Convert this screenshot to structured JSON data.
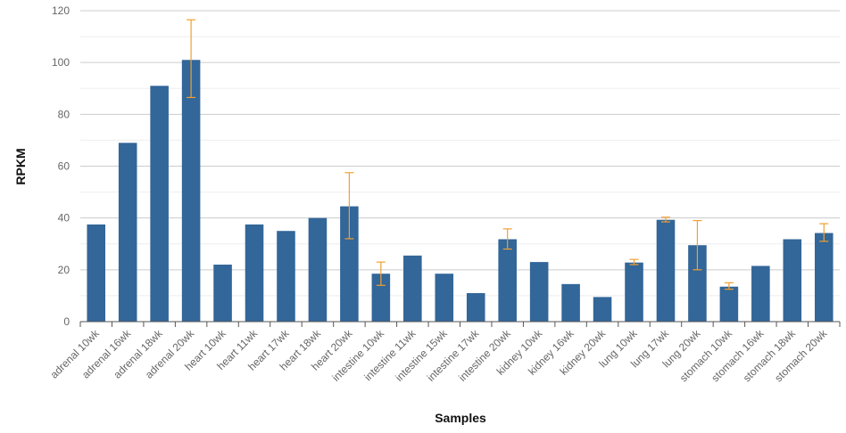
{
  "chart_data": {
    "type": "bar",
    "xlabel": "Samples",
    "ylabel": "RPKM",
    "ylim": [
      0,
      120
    ],
    "yticks": [
      0,
      20,
      40,
      60,
      80,
      100,
      120
    ],
    "grid": true,
    "bar_color": "#336699",
    "error_color": "#f0a030",
    "categories": [
      "adrenal 10wk",
      "adrenal 16wk",
      "adrenal 18wk",
      "adrenal 20wk",
      "heart 10wk",
      "heart 11wk",
      "heart 17wk",
      "heart 18wk",
      "heart 20wk",
      "intestine 10wk",
      "intestine 11wk",
      "intestine 15wk",
      "intestine 17wk",
      "intestine 20wk",
      "kidney 10wk",
      "kidney 16wk",
      "kidney 20wk",
      "lung 10wk",
      "lung 17wk",
      "lung 20wk",
      "stomach 10wk",
      "stomach 16wk",
      "stomach 18wk",
      "stomach 20wk"
    ],
    "values": [
      37.5,
      69,
      91,
      101,
      22,
      37.5,
      35,
      40,
      44.5,
      18.5,
      25.5,
      18.5,
      11,
      31.8,
      23,
      14.5,
      9.5,
      22.8,
      39.3,
      29.5,
      13.5,
      21.5,
      31.8,
      34.2
    ],
    "errors": [
      null,
      null,
      null,
      [
        86.5,
        116.5
      ],
      null,
      null,
      null,
      null,
      [
        32,
        57.5
      ],
      [
        14,
        23
      ],
      null,
      null,
      null,
      [
        28,
        35.8
      ],
      null,
      null,
      null,
      [
        22,
        24
      ],
      [
        38.5,
        40.3
      ],
      [
        20,
        39
      ],
      [
        12.5,
        15
      ],
      null,
      null,
      [
        31,
        37.8
      ]
    ]
  }
}
